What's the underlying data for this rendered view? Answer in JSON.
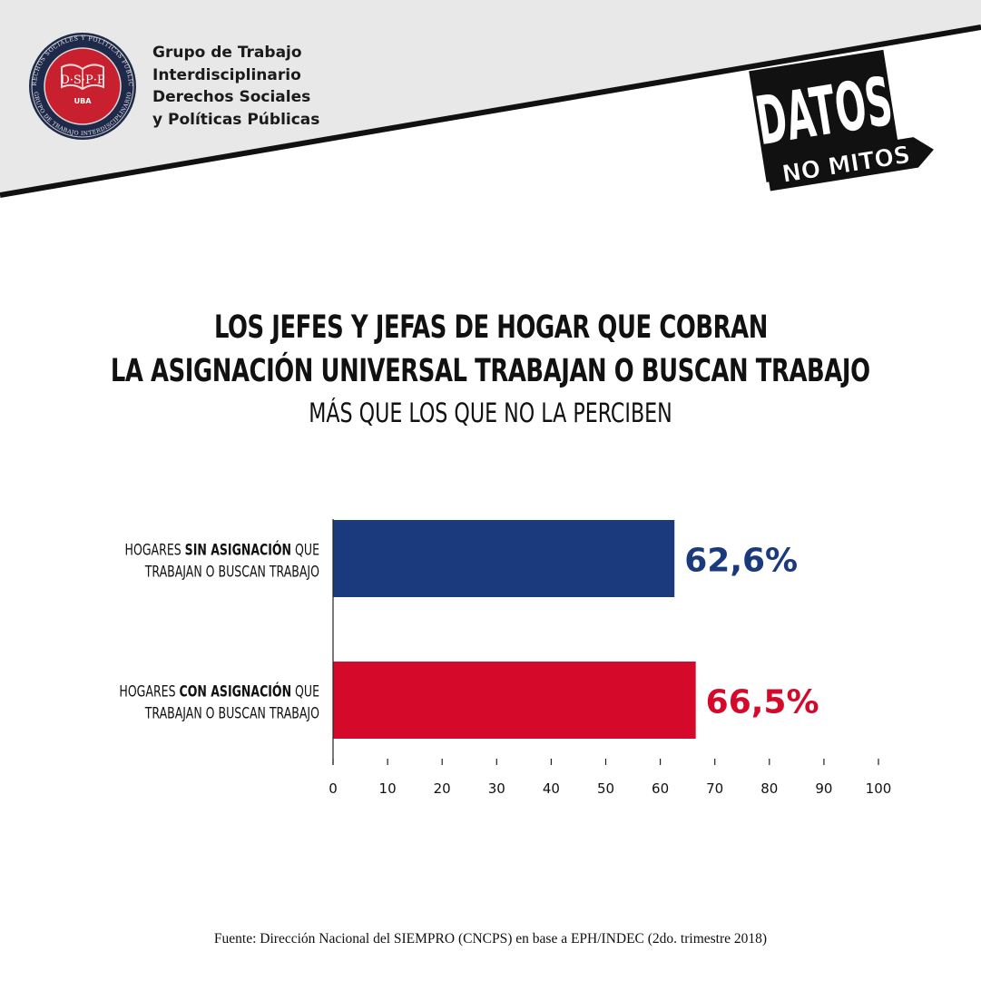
{
  "header": {
    "logo": {
      "ring_text_top": "DERECHOS SOCIALES Y POLÍTICAS PÚBLICAS",
      "ring_text_bottom": "GRUPO DE TRABAJO INTERDISCIPLINARIO",
      "monogram": "D·S·P·P",
      "university": "UBA"
    },
    "org_lines": [
      "Grupo de Trabajo",
      "Interdisciplinario",
      "Derechos Sociales",
      "y Políticas Públicas"
    ],
    "badge": {
      "top": "DATOS",
      "bottom": "NO MITOS"
    }
  },
  "title": {
    "line1": "LOS JEFES Y JEFAS DE HOGAR QUE COBRAN",
    "line2": "LA ASIGNACIÓN UNIVERSAL TRABAJAN O BUSCAN TRABAJO",
    "line3": "MÁS QUE LOS QUE NO LA PERCIBEN"
  },
  "chart_data": {
    "type": "bar",
    "orientation": "horizontal",
    "categories": [
      {
        "line1": [
          {
            "text": "HOGARES ",
            "bold": false
          },
          {
            "text": "SIN ASIGNACIÓN",
            "bold": true
          },
          {
            "text": " QUE",
            "bold": false
          }
        ],
        "line2": "TRABAJAN O BUSCAN TRABAJO"
      },
      {
        "line1": [
          {
            "text": "HOGARES ",
            "bold": false
          },
          {
            "text": "CON ASIGNACIÓN",
            "bold": true
          },
          {
            "text": " QUE",
            "bold": false
          }
        ],
        "line2": "TRABAJAN O BUSCAN TRABAJO"
      }
    ],
    "values": [
      62.6,
      66.5
    ],
    "value_labels": [
      "62,6%",
      "66,5%"
    ],
    "colors": [
      "#1b3a7e",
      "#d50a2a"
    ],
    "xlim": [
      0,
      100
    ],
    "xticks": [
      0,
      10,
      20,
      30,
      40,
      50,
      60,
      70,
      80,
      90,
      100
    ],
    "grid": false
  },
  "source": "Fuente: Dirección Nacional del SIEMPRO (CNCPS) en base a EPH/INDEC (2do. trimestre 2018)"
}
